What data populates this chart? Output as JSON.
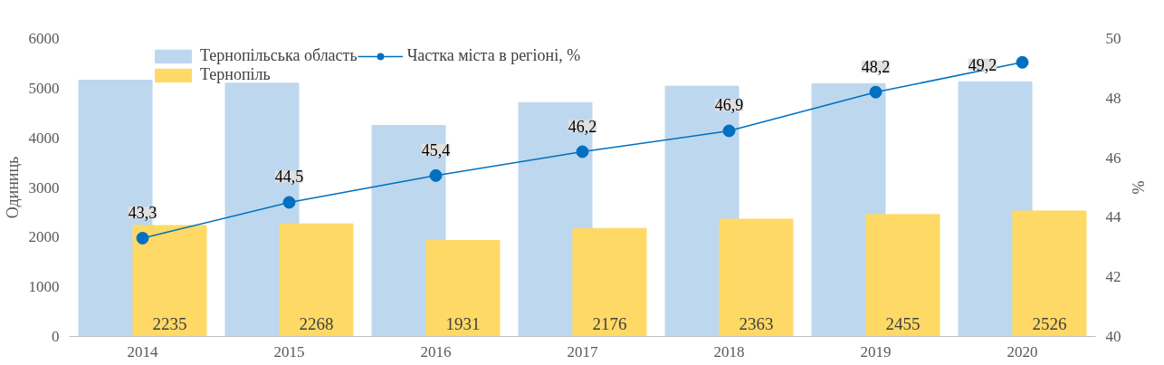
{
  "chart_data": {
    "type": "bar",
    "categories": [
      "2014",
      "2015",
      "2016",
      "2017",
      "2018",
      "2019",
      "2020"
    ],
    "series": [
      {
        "name": "Тернопільська область",
        "color": "#bdd7ee",
        "values": [
          5160,
          5100,
          4250,
          4710,
          5040,
          5090,
          5130
        ],
        "data_labels": false
      },
      {
        "name": "Тернопіль",
        "color": "#ffd966",
        "values": [
          2235,
          2268,
          1931,
          2176,
          2363,
          2455,
          2526
        ],
        "data_labels": true
      },
      {
        "name": "Частка міста в регіоні, %",
        "type": "line",
        "axis": "y2",
        "color": "#0070c0",
        "marker": "circle",
        "values": [
          43.3,
          44.5,
          45.4,
          46.2,
          46.9,
          48.2,
          49.2
        ],
        "value_labels": [
          "43,3",
          "44,5",
          "45,4",
          "46,2",
          "46,9",
          "48,2",
          "49,2"
        ],
        "data_labels": true
      }
    ],
    "ylabel": "Одиниць",
    "y2label": "%",
    "ylim": [
      0,
      6000
    ],
    "yticks": [
      0,
      1000,
      2000,
      3000,
      4000,
      5000,
      6000
    ],
    "y2lim": [
      40,
      50
    ],
    "y2ticks": [
      40,
      42,
      44,
      46,
      48,
      50
    ],
    "grid": false,
    "legend": "top"
  }
}
